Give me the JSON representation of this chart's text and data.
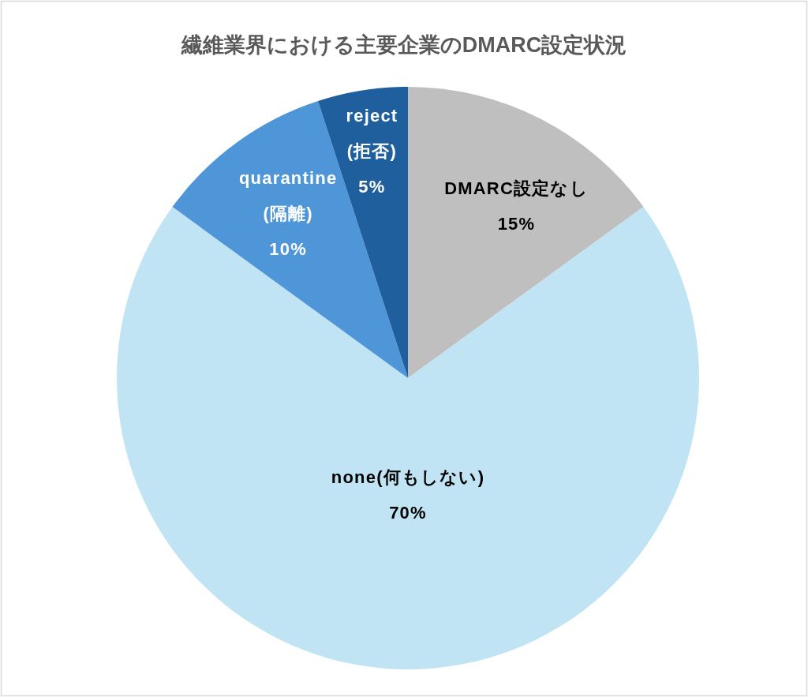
{
  "chart_data": {
    "type": "pie",
    "title": "繊維業界における主要企業のDMARC設定状況",
    "categories": [
      "DMARC設定なし",
      "none(何もしない)",
      "quarantine\n(隔離)",
      "reject\n(拒否)"
    ],
    "values": [
      15,
      70,
      10,
      5
    ],
    "colors": [
      "#bfbfbf",
      "#c0e4f4",
      "#4e96d8",
      "#205f9d"
    ],
    "value_labels": [
      "15%",
      "70%",
      "10%",
      "5%"
    ]
  }
}
